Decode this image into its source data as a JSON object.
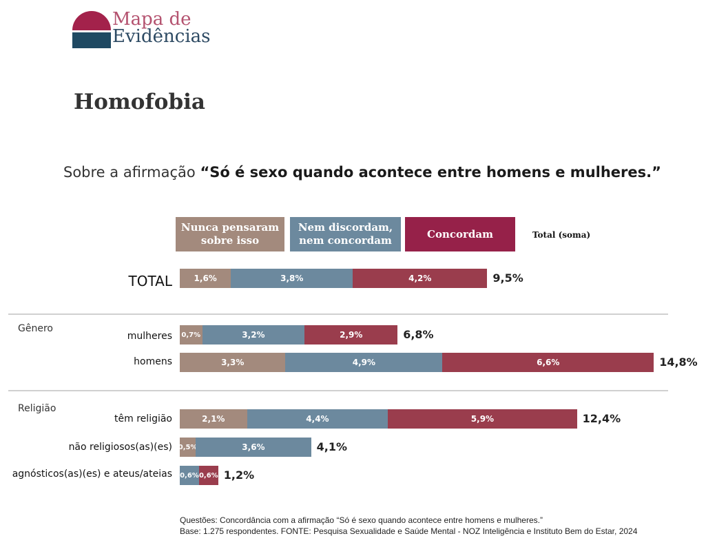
{
  "brand": {
    "line1": "Mapa de",
    "line2": "Evidências",
    "colors": {
      "top": "#a3224b",
      "bottom": "#1f4962"
    }
  },
  "page_title": "Homofobia",
  "subtitle": {
    "prefix": "Sobre a afirmação ",
    "quote": "“Só é sexo quando acontece entre homens e mulheres.”"
  },
  "colors": {
    "nunca": "#a38a7d",
    "nem": "#6c899e",
    "concordam": "#9a3d4d",
    "legend_concordam": "#962149"
  },
  "chart_data": {
    "type": "bar",
    "orientation": "horizontal",
    "stacked": true,
    "title": "Sobre a afirmação “Só é sexo quando acontece entre homens e mulheres.”",
    "legend": [
      "Nunca pensaram sobre isso",
      "Nem discordam, nem concordam",
      "Concordam"
    ],
    "legend_labels": [
      {
        "line1": "Nunca pensaram",
        "line2": "sobre isso"
      },
      {
        "line1": "Nem discordam,",
        "line2": "nem concordam"
      },
      {
        "line1": "Concordam",
        "line2": ""
      }
    ],
    "total_header": "Total (soma)",
    "groups": [
      "Gênero",
      "Religião"
    ],
    "rows": [
      {
        "label": "TOTAL",
        "group": "",
        "values": [
          1.6,
          3.8,
          4.2
        ],
        "value_labels": [
          "1,6%",
          "3,8%",
          "4,2%"
        ],
        "total": 9.5,
        "total_label": "9,5%"
      },
      {
        "label": "mulheres",
        "group": "Gênero",
        "values": [
          0.7,
          3.2,
          2.9
        ],
        "value_labels": [
          "0,7%",
          "3,2%",
          "2,9%"
        ],
        "total": 6.8,
        "total_label": "6,8%"
      },
      {
        "label": "homens",
        "group": "Gênero",
        "values": [
          3.3,
          4.9,
          6.6
        ],
        "value_labels": [
          "3,3%",
          "4,9%",
          "6,6%"
        ],
        "total": 14.8,
        "total_label": "14,8%"
      },
      {
        "label": "têm religião",
        "group": "Religião",
        "values": [
          2.1,
          4.4,
          5.9
        ],
        "value_labels": [
          "2,1%",
          "4,4%",
          "5,9%"
        ],
        "total": 12.4,
        "total_label": "12,4%"
      },
      {
        "label": "não religiosos(as)(es)",
        "group": "Religião",
        "values": [
          0.5,
          3.6,
          0
        ],
        "value_labels": [
          "0,5%",
          "3,6%",
          ""
        ],
        "total": 4.1,
        "total_label": "4,1%"
      },
      {
        "label": "agnósticos(as)(es) e ateus/ateias",
        "group": "Religião",
        "values": [
          0,
          0.6,
          0.6
        ],
        "value_labels": [
          "",
          "0,6%",
          "0,6%"
        ],
        "total": 1.2,
        "total_label": "1,2%"
      }
    ],
    "xlim": [
      0,
      14.8
    ]
  },
  "footnote": {
    "line1": "Questões: Concordância com a afirmação “Só é sexo quando acontece entre homens e mulheres.”",
    "line2": "Base: 1.275 respondentes. FONTE: Pesquisa Sexualidade e Saúde Mental - NOZ Inteligência e Instituto Bem do Estar, 2024"
  }
}
